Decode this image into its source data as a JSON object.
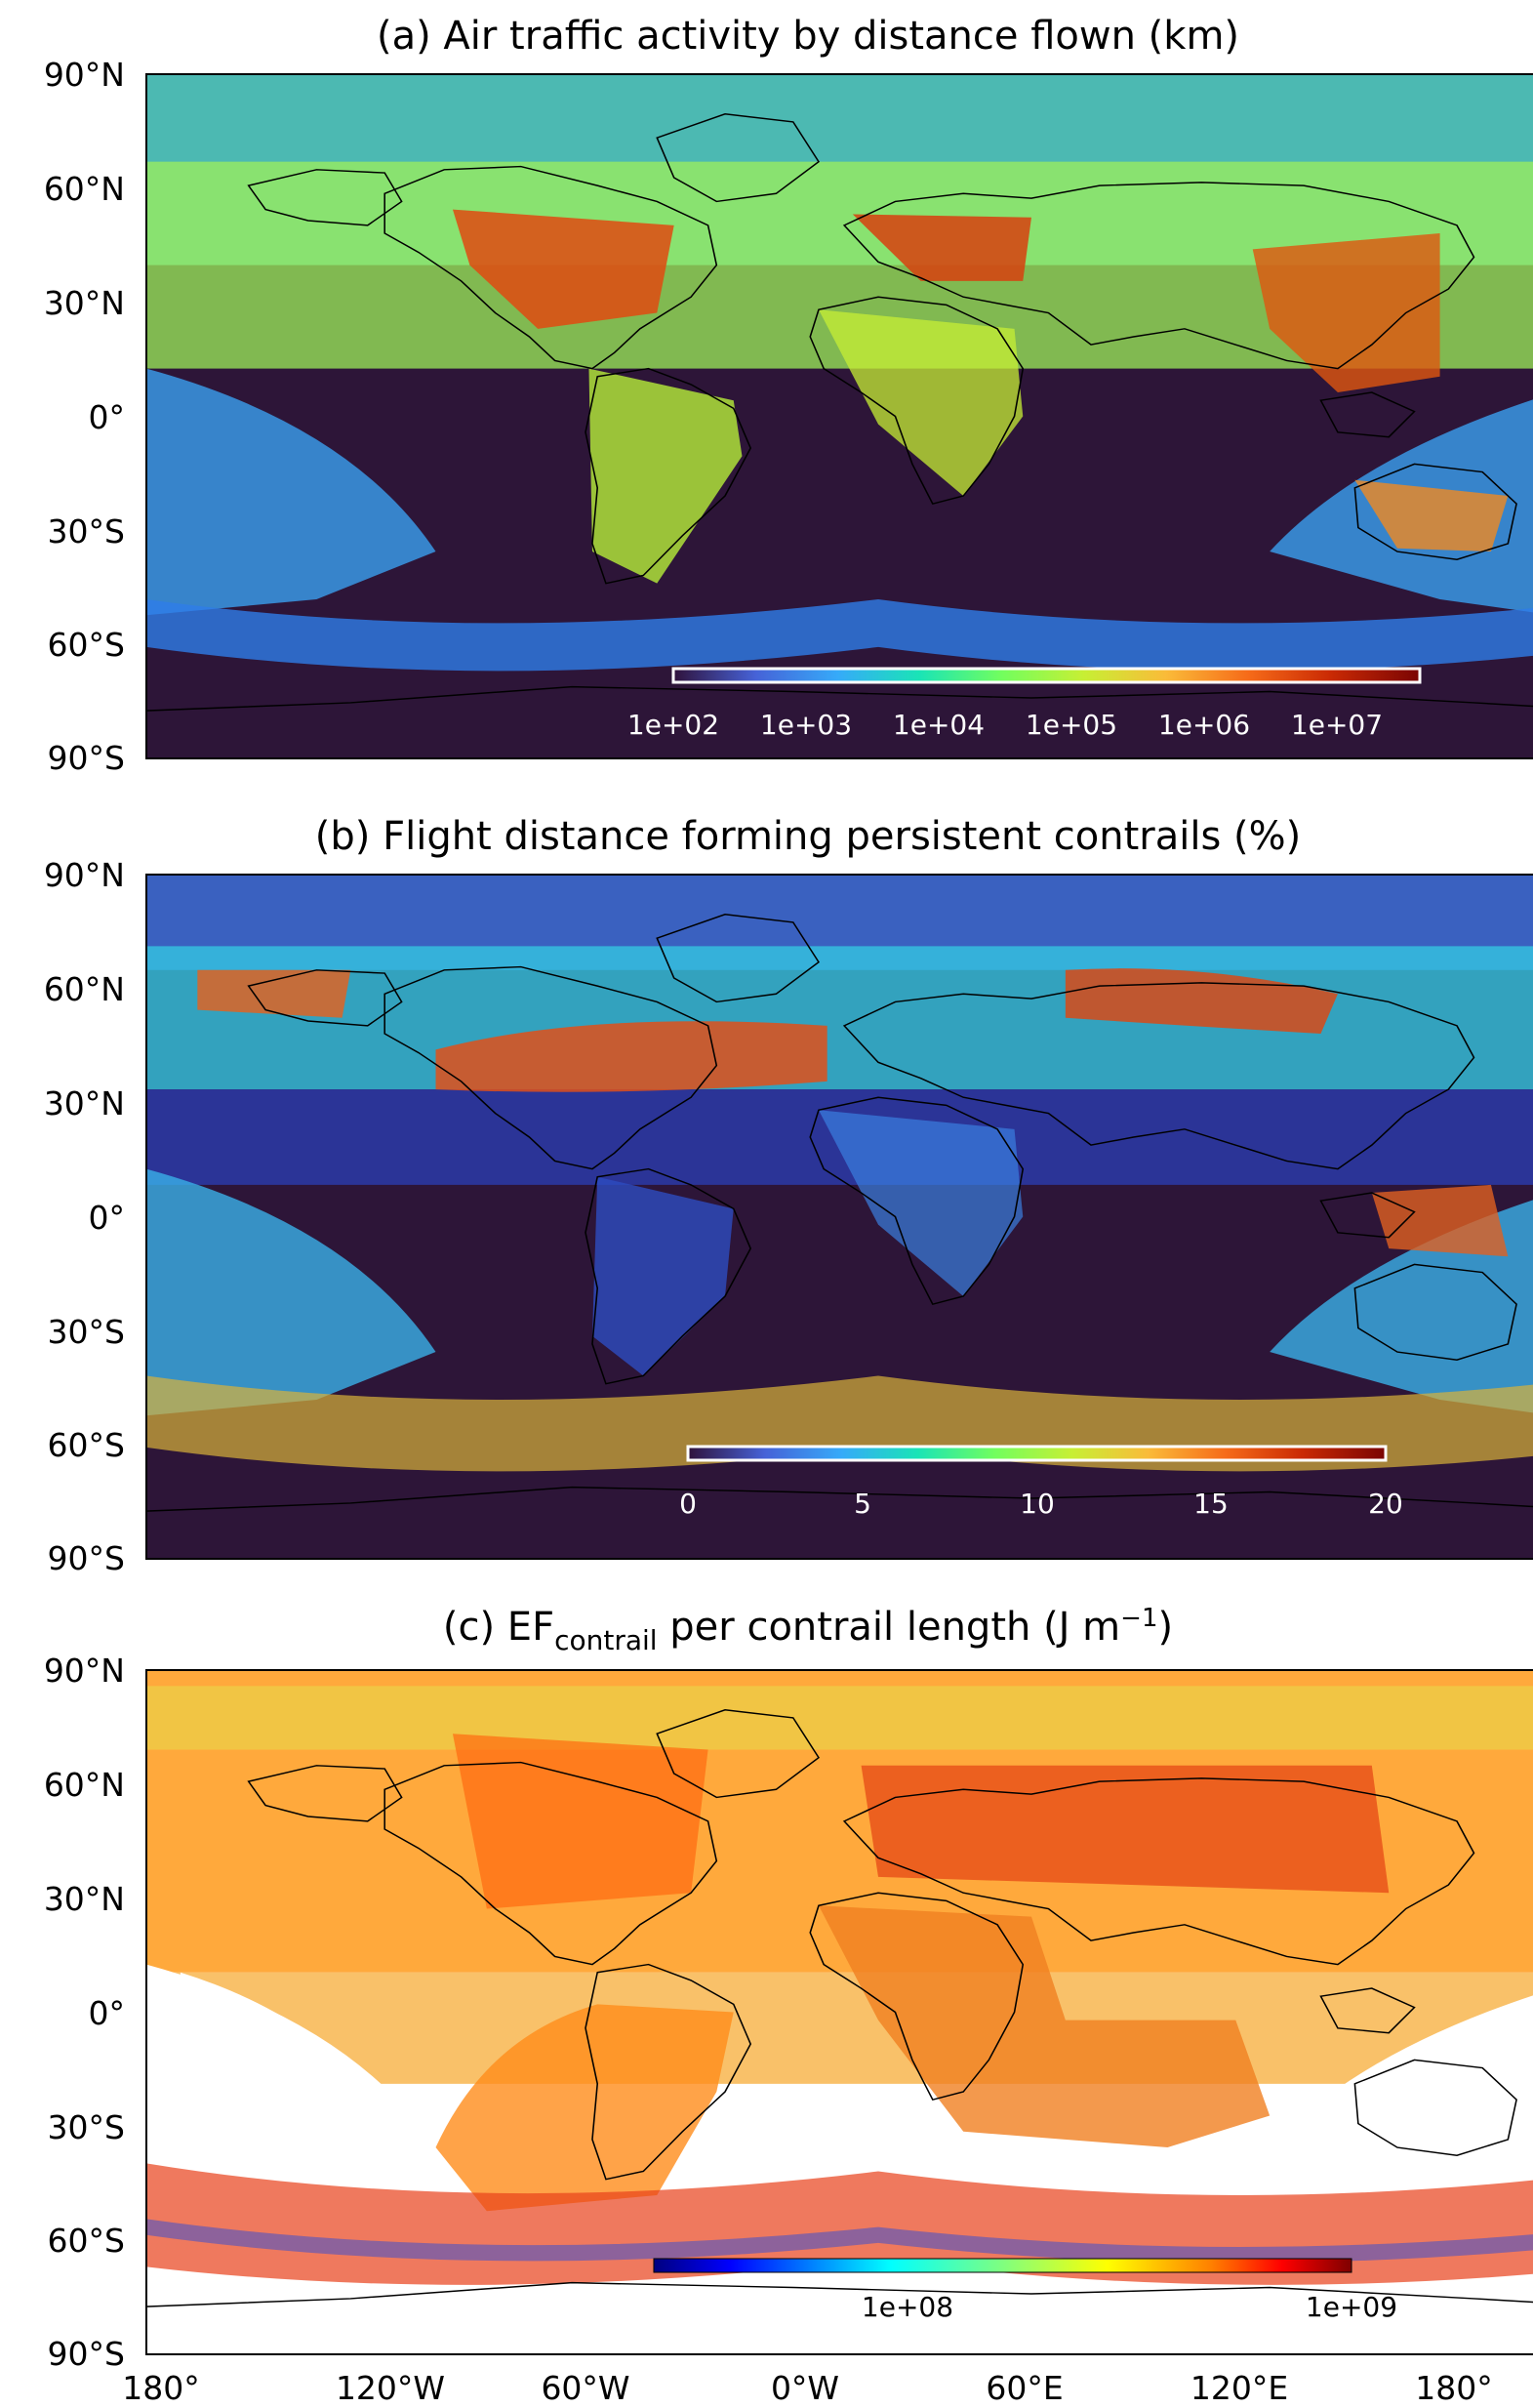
{
  "figure": {
    "panels": [
      {
        "id": "a",
        "title": "(a) Air traffic activity by distance flown (km)",
        "background": "#2d1538",
        "colorbar": {
          "scale": "log",
          "tick_labels": [
            "1e+02",
            "1e+03",
            "1e+04",
            "1e+05",
            "1e+06",
            "1e+07"
          ],
          "colormap": "turbo",
          "frame_color": "#ffffff"
        }
      },
      {
        "id": "b",
        "title": "(b) Flight distance forming persistent contrails (%)",
        "background": "#2d1538",
        "colorbar": {
          "scale": "linear",
          "range": [
            0,
            20
          ],
          "tick_labels": [
            "0",
            "5",
            "10",
            "15",
            "20"
          ],
          "colormap": "turbo",
          "frame_color": "#ffffff"
        }
      },
      {
        "id": "c",
        "title_main": "(c) EF",
        "title_sub": "contrail",
        "title_rest": " per contrail length (J m",
        "title_sup": "−1",
        "title_end": ")",
        "background": "#ffffff",
        "colorbar": {
          "scale": "log",
          "tick_labels": [
            "1e+08",
            "1e+09"
          ],
          "colormap": "jet",
          "frame_color": "#000000"
        }
      }
    ],
    "y_tick_labels": [
      "90°N",
      "60°N",
      "30°N",
      "0°",
      "30°S",
      "60°S",
      "90°S"
    ],
    "x_tick_labels": [
      "180°",
      "120°W",
      "60°W",
      "0°W",
      "60°E",
      "120°E",
      "180°"
    ],
    "colors": {
      "coastline": "#000000",
      "ocean_empty": "#2d1538",
      "turbo_stops": [
        "#30123b",
        "#4662d7",
        "#36aaf9",
        "#1ae4b6",
        "#72fe5e",
        "#c7ef34",
        "#fabb39",
        "#f66b19",
        "#ca2a04",
        "#7a0403"
      ],
      "jet_stops": [
        "#00007f",
        "#0000ff",
        "#007fff",
        "#00ffff",
        "#7fff7f",
        "#ffff00",
        "#ff7f00",
        "#ff0000",
        "#7f0000"
      ]
    }
  }
}
